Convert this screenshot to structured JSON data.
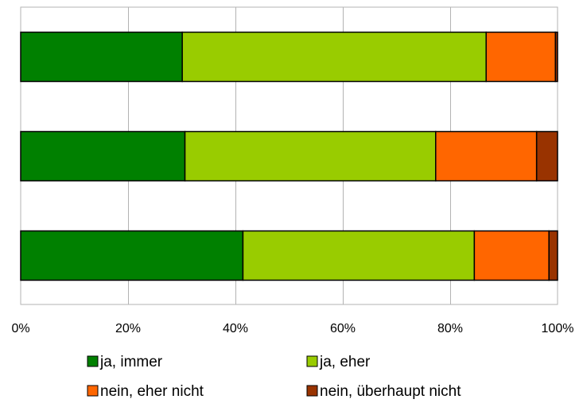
{
  "chart_data": {
    "type": "bar",
    "orientation": "horizontal",
    "stacked": true,
    "percent_stacked": true,
    "categories": [
      "",
      "",
      ""
    ],
    "series": [
      {
        "name": "ja, immer",
        "color": "#008000",
        "values": [
          30.1,
          30.6,
          41.4
        ]
      },
      {
        "name": "ja, eher",
        "color": "#99CC00",
        "values": [
          56.6,
          46.7,
          43.1
        ]
      },
      {
        "name": "nein, eher nicht",
        "color": "#FF6600",
        "values": [
          12.9,
          18.8,
          13.9
        ]
      },
      {
        "name": "nein, überhaupt nicht",
        "color": "#993300",
        "values": [
          0.4,
          3.9,
          1.6
        ]
      }
    ],
    "xlim": [
      0,
      100
    ],
    "xticks": [
      0,
      20,
      40,
      60,
      80,
      100
    ],
    "xtick_labels": [
      "0%",
      "20%",
      "40%",
      "60%",
      "80%",
      "100%"
    ],
    "grid": true,
    "legend": "bottom",
    "title": "",
    "xlabel": "",
    "ylabel": ""
  }
}
